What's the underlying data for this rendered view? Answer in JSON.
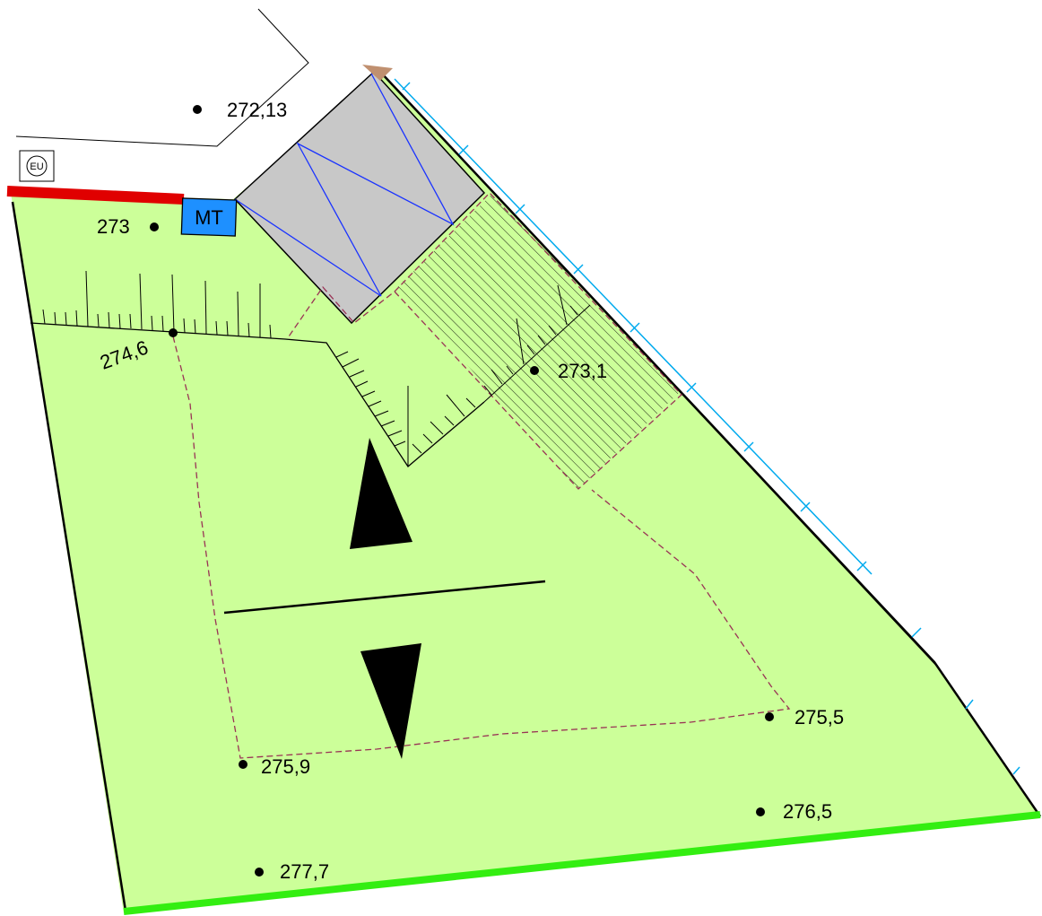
{
  "markers": {
    "eu": "EU",
    "mt": "MT"
  },
  "elevations": [
    {
      "id": "p1",
      "label": "272,13"
    },
    {
      "id": "p2",
      "label": "273"
    },
    {
      "id": "p3",
      "label": "274,6"
    },
    {
      "id": "p4",
      "label": "273,1"
    },
    {
      "id": "p5",
      "label": "275,5"
    },
    {
      "id": "p6",
      "label": "275,9"
    },
    {
      "id": "p7",
      "label": "276,5"
    },
    {
      "id": "p8",
      "label": "277,7"
    }
  ],
  "colors": {
    "lawn": "#ccff99",
    "boundary_red": "#e00000",
    "boundary_green": "#33ee11",
    "building": "#c8c8c8",
    "mt_box": "#1e90ff",
    "fence_cyan": "#00aaee",
    "dashed": "#993355",
    "blue_lines": "#1a33ff",
    "triangle_tip": "#c09070"
  },
  "icons": {
    "north_arrow": "slope-arrows-icon"
  }
}
